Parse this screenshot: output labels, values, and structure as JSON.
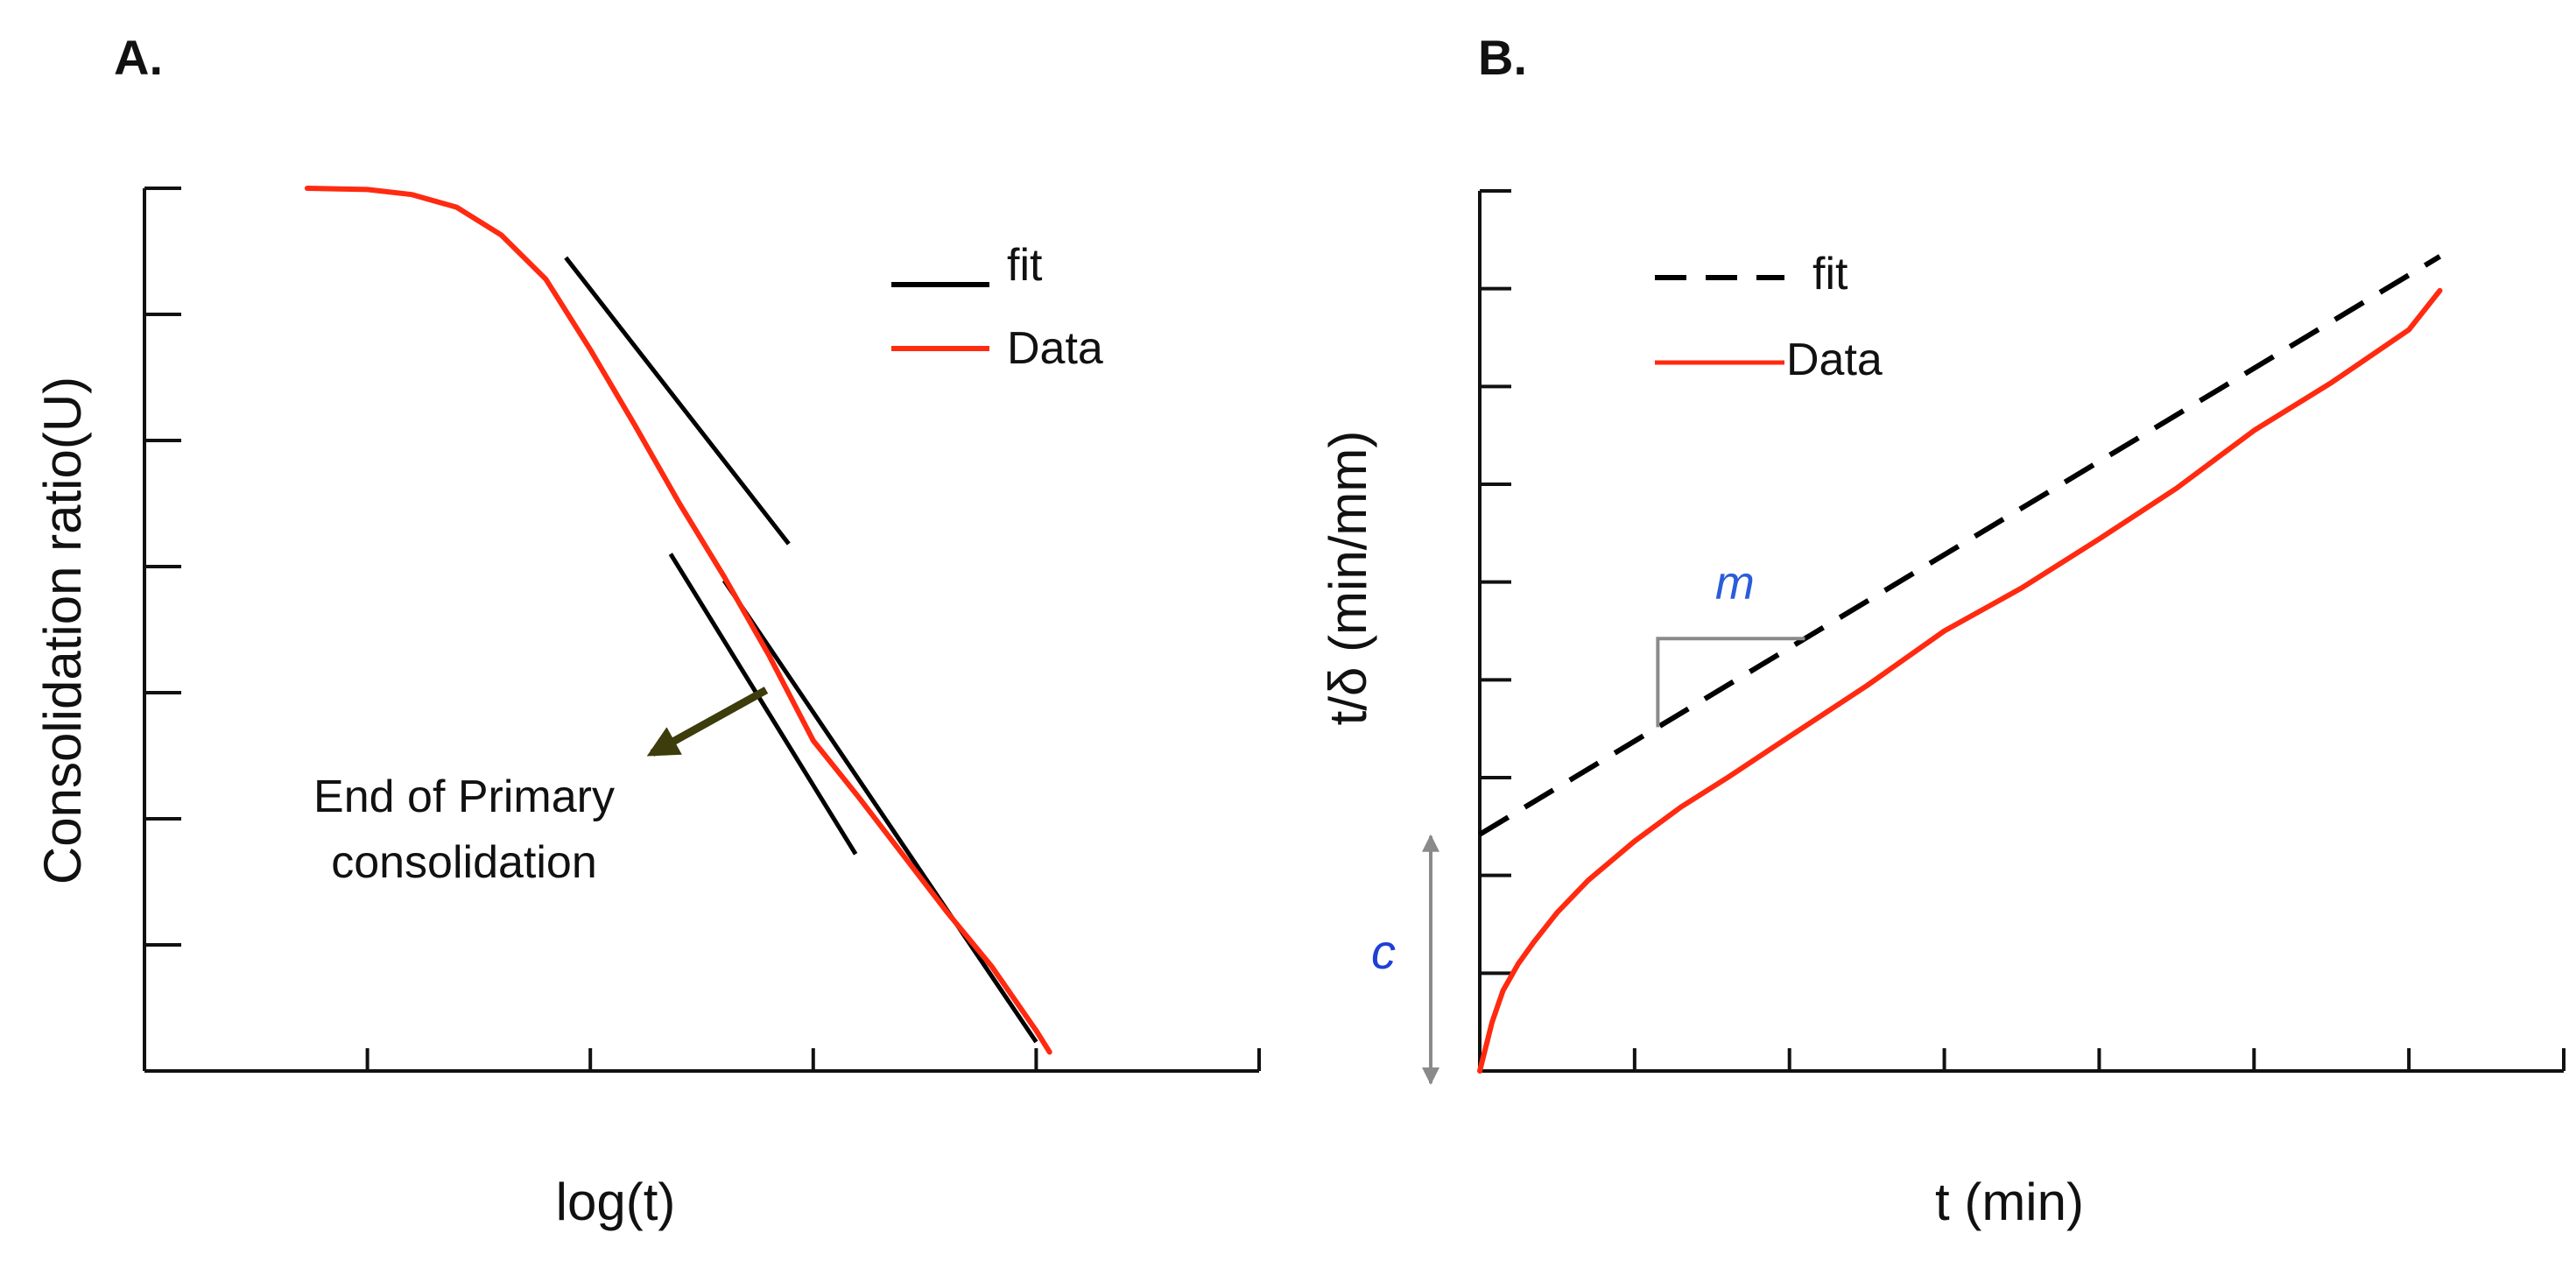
{
  "chart_data": [
    {
      "panel_label": "A.",
      "type": "line",
      "xlabel": "log(t)",
      "ylabel": "Consolidation ratio(U)",
      "xlim": [
        0,
        5
      ],
      "ylim": [
        0,
        7
      ],
      "x_ticks": [
        1,
        2,
        3,
        4,
        5
      ],
      "y_ticks": [
        1,
        2,
        3,
        4,
        5,
        6,
        7
      ],
      "grid": false,
      "legend_position": "top-right",
      "series": [
        {
          "name": "Data",
          "color": "#ff2a10",
          "x": [
            0.73,
            1.0,
            1.2,
            1.4,
            1.6,
            1.8,
            2.0,
            2.2,
            2.4,
            2.6,
            2.8,
            3.0,
            3.2,
            3.4,
            3.6,
            3.8,
            4.0,
            4.06
          ],
          "y": [
            7.0,
            6.99,
            6.95,
            6.85,
            6.63,
            6.28,
            5.72,
            5.12,
            4.5,
            3.92,
            3.3,
            2.62,
            2.18,
            1.72,
            1.26,
            0.83,
            0.32,
            0.15
          ]
        },
        {
          "name": "fit",
          "color": "#000000",
          "segments": [
            {
              "x": [
                1.89,
                2.89
              ],
              "y": [
                6.45,
                4.18
              ]
            },
            {
              "x": [
                2.36,
                3.19
              ],
              "y": [
                4.1,
                1.72
              ]
            },
            {
              "x": [
                2.6,
                4.0
              ],
              "y": [
                3.89,
                0.23
              ]
            }
          ]
        }
      ],
      "annotations": [
        {
          "text_lines": [
            "End of Primary",
            "consolidation"
          ],
          "points_to": {
            "x": 2.8,
            "y": 3.0
          }
        }
      ]
    },
    {
      "panel_label": "B.",
      "type": "line",
      "xlabel": "t (min)",
      "ylabel": "t/δ (min/mm)",
      "xlim": [
        0,
        7
      ],
      "ylim": [
        0,
        9
      ],
      "x_ticks": [
        1,
        2,
        3,
        4,
        5,
        6,
        7
      ],
      "y_ticks": [
        1,
        2,
        3,
        4,
        5,
        6,
        7,
        8,
        9
      ],
      "grid": false,
      "legend_position": "top-left",
      "series": [
        {
          "name": "fit",
          "color": "#000000",
          "dash": true,
          "x": [
            0,
            6.2
          ],
          "y": [
            2.42,
            8.33
          ]
        },
        {
          "name": "Data",
          "color": "#ff2a10",
          "x": [
            0,
            0.08,
            0.15,
            0.25,
            0.35,
            0.5,
            0.7,
            1.0,
            1.3,
            1.6,
            2.0,
            2.5,
            3.0,
            3.5,
            4.0,
            4.5,
            5.0,
            5.5,
            6.0,
            6.2
          ],
          "y": [
            0,
            0.5,
            0.82,
            1.1,
            1.32,
            1.62,
            1.95,
            2.35,
            2.7,
            3.0,
            3.42,
            3.94,
            4.5,
            4.94,
            5.44,
            5.96,
            6.55,
            7.04,
            7.58,
            7.98
          ]
        }
      ],
      "annotations": [
        {
          "text": "m",
          "color": "#2a5cdb",
          "slope_triangle_x": [
            1.15,
            2.1
          ]
        },
        {
          "text": "c",
          "color": "#1f3fd8",
          "intercept_value": 2.42
        }
      ]
    }
  ]
}
